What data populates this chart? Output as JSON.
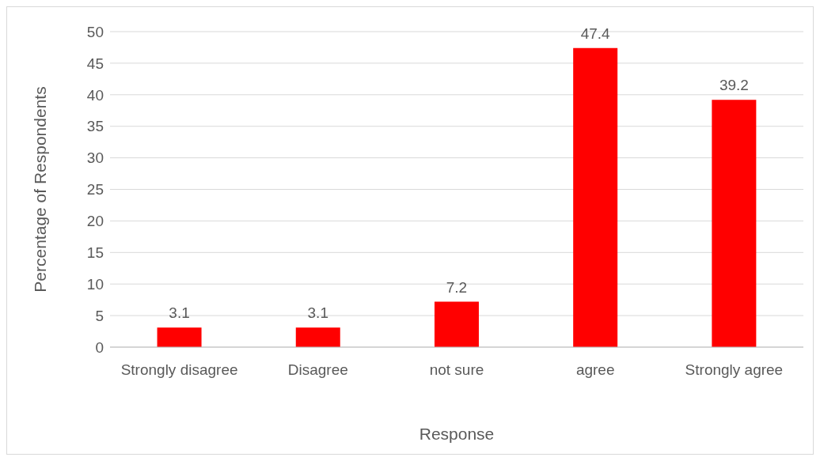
{
  "chart_data": {
    "type": "bar",
    "xlabel": "Response",
    "ylabel": "Percentage of Respondents",
    "categories": [
      "Strongly disagree",
      "Disagree",
      "not sure",
      "agree",
      "Strongly agree"
    ],
    "values": [
      3.1,
      3.1,
      7.2,
      47.4,
      39.2
    ],
    "color": "#ff0000",
    "ylim": [
      0,
      50
    ],
    "yticks": [
      0,
      5,
      10,
      15,
      20,
      25,
      30,
      35,
      40,
      45,
      50
    ],
    "grid": "y",
    "data_labels": true
  }
}
